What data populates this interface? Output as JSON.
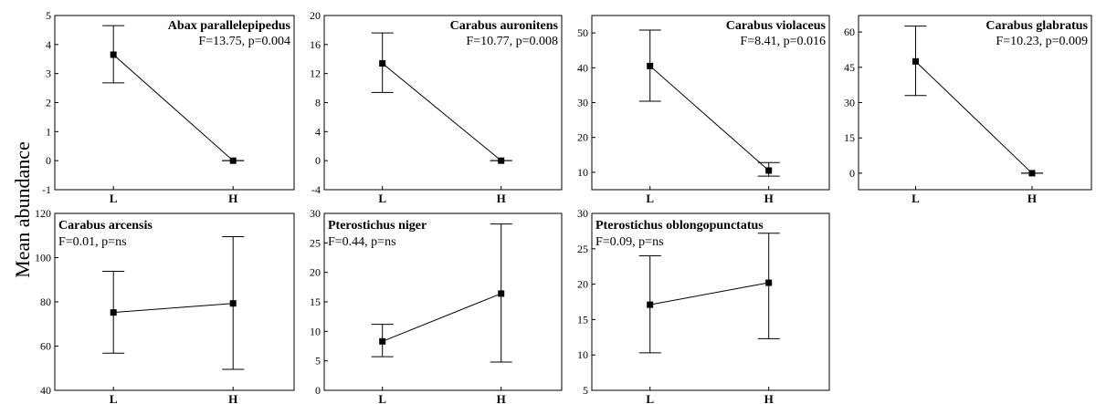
{
  "figure": {
    "ylabel": "Mean abundance"
  },
  "chart_data": [
    {
      "type": "line",
      "title": "Abax parallelepipedus",
      "subtitle": "F=13.75, p=0.004",
      "categories": [
        "L",
        "H"
      ],
      "values": [
        3.65,
        0.0
      ],
      "error_upper": [
        4.65,
        0.0
      ],
      "error_lower": [
        2.68,
        0.0
      ],
      "ylim": [
        -1,
        5
      ],
      "yticks": [
        -1,
        0,
        1,
        2,
        3,
        4,
        5
      ],
      "title_align": "right"
    },
    {
      "type": "line",
      "title": "Carabus auronitens",
      "subtitle": "F=10.77, p=0.008",
      "categories": [
        "L",
        "H"
      ],
      "values": [
        13.4,
        0.0
      ],
      "error_upper": [
        17.6,
        0.0
      ],
      "error_lower": [
        9.4,
        0.0
      ],
      "ylim": [
        -4,
        20
      ],
      "yticks": [
        -4,
        0,
        4,
        8,
        12,
        16,
        20
      ],
      "title_align": "right"
    },
    {
      "type": "line",
      "title": "Carabus violaceus",
      "subtitle": "F=8.41, p=0.016",
      "categories": [
        "L",
        "H"
      ],
      "values": [
        40.5,
        10.5
      ],
      "error_upper": [
        50.8,
        12.8
      ],
      "error_lower": [
        30.4,
        8.9
      ],
      "ylim": [
        5,
        55
      ],
      "yticks": [
        10,
        20,
        30,
        40,
        50
      ],
      "title_align": "right"
    },
    {
      "type": "line",
      "title": "Carabus glabratus",
      "subtitle": "F=10.23, p=0.009",
      "categories": [
        "L",
        "H"
      ],
      "values": [
        47.5,
        0.0
      ],
      "error_upper": [
        62.5,
        0.0
      ],
      "error_lower": [
        33.0,
        0.0
      ],
      "ylim": [
        -7,
        67
      ],
      "yticks": [
        0,
        15,
        30,
        45,
        60
      ],
      "title_align": "right"
    },
    {
      "type": "line",
      "title": "Carabus arcensis",
      "subtitle": "F=0.01, p=ns",
      "categories": [
        "L",
        "H"
      ],
      "values": [
        75.2,
        79.3
      ],
      "error_upper": [
        93.8,
        109.5
      ],
      "error_lower": [
        56.8,
        49.5
      ],
      "ylim": [
        40,
        120
      ],
      "yticks": [
        40,
        60,
        80,
        100,
        120
      ],
      "title_align": "left"
    },
    {
      "type": "line",
      "title": "Pterostichus niger",
      "subtitle": "F=0.44, p=ns",
      "categories": [
        "L",
        "H"
      ],
      "values": [
        8.3,
        16.4
      ],
      "error_upper": [
        11.2,
        28.2
      ],
      "error_lower": [
        5.7,
        4.8
      ],
      "ylim": [
        0,
        30
      ],
      "yticks": [
        0,
        5,
        10,
        15,
        20,
        25,
        30
      ],
      "title_align": "left"
    },
    {
      "type": "line",
      "title": "Pterostichus oblongopunctatus",
      "subtitle": "F=0.09, p=ns",
      "categories": [
        "L",
        "H"
      ],
      "values": [
        17.1,
        20.2
      ],
      "error_upper": [
        24.0,
        27.2
      ],
      "error_lower": [
        10.3,
        12.3
      ],
      "ylim": [
        5,
        30
      ],
      "yticks": [
        5,
        10,
        15,
        20,
        25,
        30
      ],
      "title_align": "left"
    }
  ]
}
